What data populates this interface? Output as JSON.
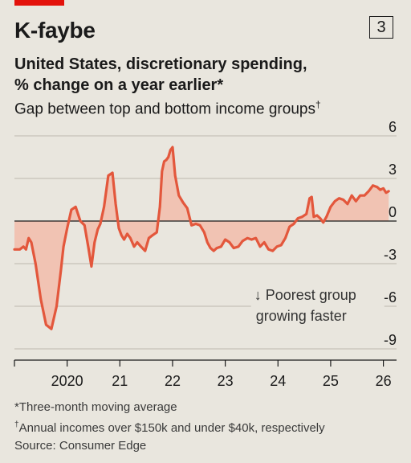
{
  "header": {
    "title": "K-faybe",
    "badge": "3",
    "subtitle_line1": "United States, discretionary spending,",
    "subtitle_line2": "% change on a year earlier*",
    "subtitle2": "Gap between top and bottom income groups",
    "subtitle2_mark": "†"
  },
  "chart_data": {
    "type": "area",
    "title": "",
    "xlabel": "",
    "ylabel": "",
    "ylim": [
      -9,
      6
    ],
    "yticks": [
      6,
      3,
      0,
      -3,
      -6,
      -9
    ],
    "ytick_labels": [
      "6",
      "3",
      "0",
      "-3",
      "-6",
      "-9"
    ],
    "xlim": [
      2019.0,
      2026.25
    ],
    "xticks": [
      2020,
      2021,
      2022,
      2023,
      2024,
      2025,
      2026
    ],
    "xtick_labels": [
      "2020",
      "21",
      "22",
      "23",
      "24",
      "25",
      "26"
    ],
    "grid": true,
    "line_color": "#e3573c",
    "fill_color": "#f1c3b3",
    "annotation": {
      "line1": "↓ Poorest group",
      "line2": "growing faster",
      "x": 2023.55,
      "y": -5.5
    },
    "series": [
      {
        "x": [
          2019.0,
          2019.1,
          2019.17,
          2019.22,
          2019.27,
          2019.32,
          2019.4,
          2019.5,
          2019.6,
          2019.7,
          2019.8,
          2019.88,
          2019.93,
          2020.0,
          2020.08,
          2020.16,
          2020.25,
          2020.33,
          2020.4,
          2020.46,
          2020.52,
          2020.58,
          2020.63,
          2020.7,
          2020.78,
          2020.86,
          2020.92,
          2020.98,
          2021.03,
          2021.08,
          2021.14,
          2021.2,
          2021.27,
          2021.33,
          2021.4,
          2021.48,
          2021.55,
          2021.62,
          2021.7,
          2021.76,
          2021.8,
          2021.84,
          2021.88,
          2021.92,
          2021.96,
          2022.0,
          2022.05,
          2022.12,
          2022.2,
          2022.28,
          2022.36,
          2022.44,
          2022.52,
          2022.6,
          2022.66,
          2022.72,
          2022.78,
          2022.84,
          2022.92,
          2023.0,
          2023.08,
          2023.16,
          2023.25,
          2023.33,
          2023.42,
          2023.5,
          2023.58,
          2023.66,
          2023.74,
          2023.82,
          2023.9,
          2023.98,
          2024.06,
          2024.14,
          2024.22,
          2024.3,
          2024.38,
          2024.46,
          2024.54,
          2024.6,
          2024.64,
          2024.68,
          2024.74,
          2024.8,
          2024.86,
          2024.92,
          2025.0,
          2025.08,
          2025.16,
          2025.24,
          2025.32,
          2025.4,
          2025.48,
          2025.56,
          2025.64,
          2025.72,
          2025.8,
          2025.88,
          2025.94,
          2026.0,
          2026.05,
          2026.1
        ],
        "values": [
          -2.0,
          -2.0,
          -1.8,
          -2.0,
          -1.2,
          -1.5,
          -3.0,
          -5.5,
          -7.3,
          -7.6,
          -6.0,
          -3.5,
          -1.8,
          -0.5,
          0.8,
          1.0,
          0.0,
          -0.3,
          -1.8,
          -3.2,
          -1.5,
          -0.6,
          -0.2,
          1.0,
          3.2,
          3.4,
          1.2,
          -0.5,
          -1.0,
          -1.3,
          -0.9,
          -1.2,
          -1.8,
          -1.5,
          -1.8,
          -2.1,
          -1.2,
          -1.0,
          -0.8,
          1.0,
          3.5,
          4.2,
          4.3,
          4.5,
          5.0,
          5.2,
          3.2,
          1.8,
          1.3,
          0.9,
          -0.3,
          -0.2,
          -0.3,
          -0.8,
          -1.5,
          -1.9,
          -2.1,
          -1.9,
          -1.8,
          -1.3,
          -1.5,
          -1.9,
          -1.8,
          -1.4,
          -1.2,
          -1.3,
          -1.2,
          -1.8,
          -1.5,
          -2.0,
          -2.1,
          -1.8,
          -1.7,
          -1.2,
          -0.4,
          -0.2,
          0.2,
          0.3,
          0.5,
          1.6,
          1.7,
          0.3,
          0.4,
          0.2,
          -0.1,
          0.3,
          1.0,
          1.4,
          1.6,
          1.5,
          1.2,
          1.8,
          1.4,
          1.8,
          1.8,
          2.1,
          2.5,
          2.4,
          2.2,
          2.3,
          2.0,
          2.1
        ]
      }
    ]
  },
  "footnotes": {
    "line1": "*Three-month moving average",
    "line2_mark": "†",
    "line2": "Annual incomes over $150k and under $40k, respectively",
    "line3": "Source: Consumer Edge"
  }
}
